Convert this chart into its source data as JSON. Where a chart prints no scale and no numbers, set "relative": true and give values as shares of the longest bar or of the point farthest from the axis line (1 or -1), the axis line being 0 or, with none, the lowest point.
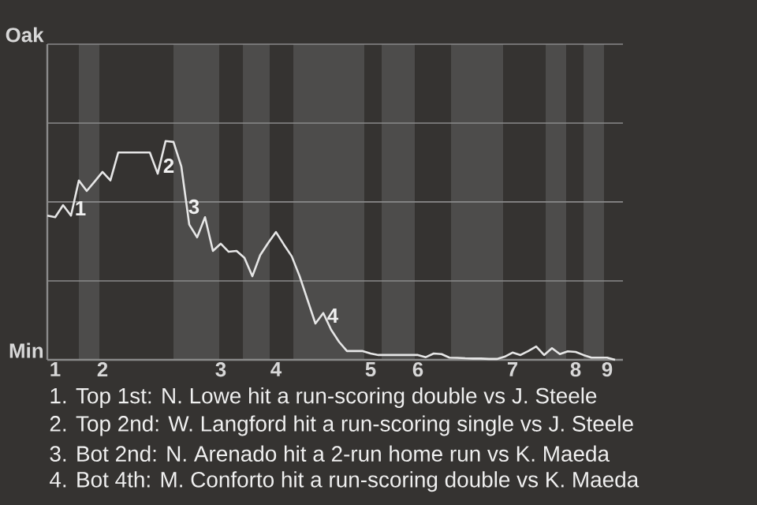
{
  "chart_data": {
    "type": "line",
    "relative": true,
    "categories": [
      null,
      "1",
      null,
      null,
      null,
      null,
      null,
      "2",
      null,
      null,
      null,
      null,
      null,
      null,
      null,
      null,
      null,
      null,
      null,
      null,
      null,
      null,
      "3",
      null,
      null,
      null,
      null,
      null,
      null,
      "4",
      null,
      null,
      null,
      null,
      null,
      null,
      null,
      null,
      null,
      null,
      null,
      "5",
      null,
      null,
      null,
      null,
      null,
      "6",
      null,
      null,
      null,
      null,
      null,
      null,
      null,
      null,
      null,
      null,
      null,
      "7",
      null,
      null,
      null,
      null,
      null,
      null,
      null,
      "8",
      null,
      null,
      null,
      "9",
      null
    ],
    "series": [
      {
        "color": "#e6e6e6",
        "values": [
          0.659,
          0.652,
          0.707,
          0.659,
          0.82,
          0.772,
          0.815,
          0.859,
          0.82,
          0.948,
          0.948,
          0.948,
          0.948,
          0.948,
          0.851,
          1,
          0.996,
          0.883,
          0.618,
          0.56,
          0.652,
          0.498,
          0.531,
          0.494,
          0.498,
          0.466,
          0.382,
          0.479,
          0.534,
          0.584,
          0.527,
          0.473,
          0.382,
          0.274,
          0.166,
          0.214,
          0.137,
          0.082,
          0.04,
          0.04,
          0.04,
          0.029,
          0.022,
          0.022,
          0.022,
          0.022,
          0.022,
          0.022,
          0.012,
          0.029,
          0.026,
          0.01,
          0.009,
          0.007,
          0.006,
          0.006,
          0.004,
          0.004,
          0.014,
          0.033,
          0.022,
          0.04,
          0.061,
          0.022,
          0.053,
          0.026,
          0.039,
          0.036,
          0.022,
          0.01,
          0.01,
          0.01,
          0
        ]
      }
    ],
    "ref_lines": [
      {
        "axis": "y",
        "value": 0.361,
        "color": "#8a8a8a"
      },
      {
        "axis": "y",
        "value": 0.722,
        "color": "#8a8a8a"
      },
      {
        "axis": "y",
        "value": 1.082,
        "color": "#8a8a8a"
      },
      {
        "axis": "y",
        "value": 1.443,
        "color": "#8a8a8a"
      }
    ],
    "annotations": [
      "Oak",
      "Min",
      "1",
      "2",
      "3",
      "4",
      "1. Top 1st: N. Lowe hit a run-scoring double vs J. Steele",
      "2. Top 2nd: W. Langford hit a run-scoring single vs J. Steele",
      "3. Bot 2nd: N. Arenado hit a 2-run home run vs K. Maeda",
      "4. Bot 4th: M. Conforto hit a run-scoring double vs K. Maeda"
    ]
  }
}
